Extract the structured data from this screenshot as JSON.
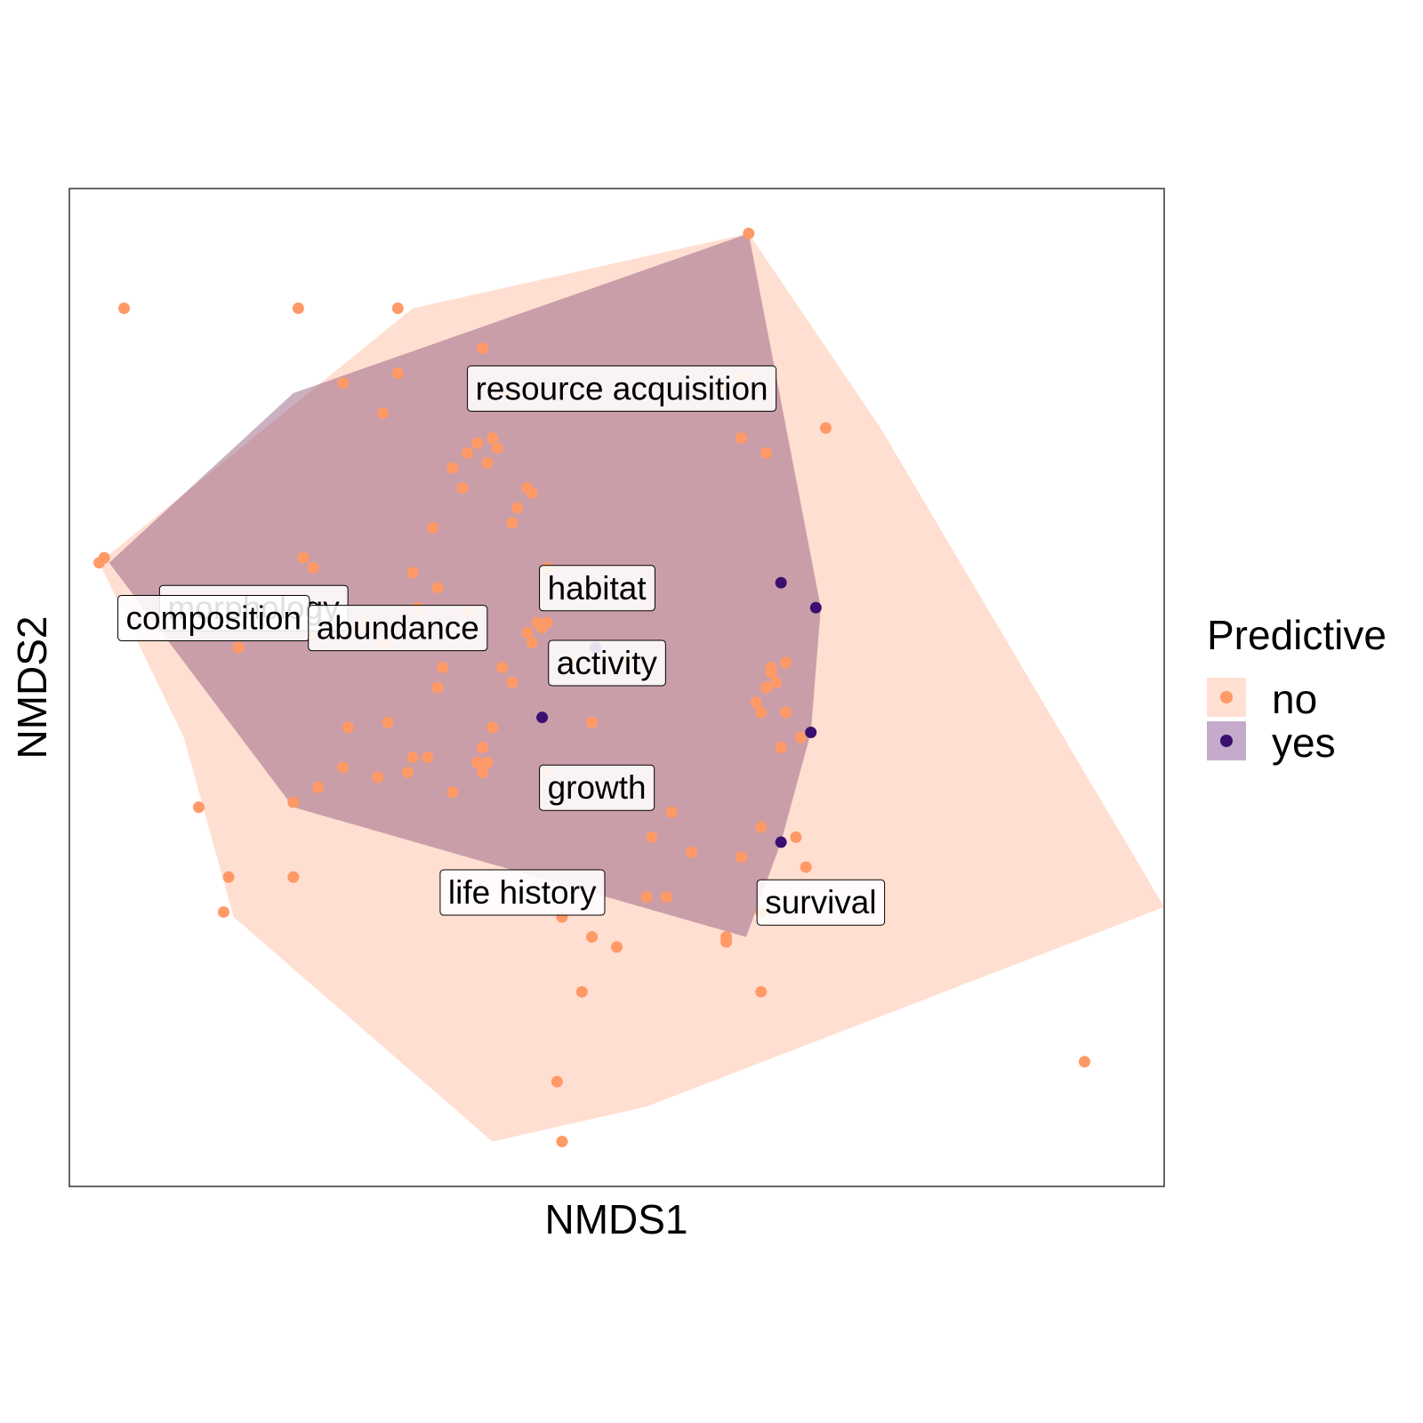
{
  "chart_data": {
    "type": "scatter",
    "xlabel": "NMDS1",
    "ylabel": "NMDS2",
    "xlim": [
      -1.05,
      1.15
    ],
    "ylim": [
      -1.0,
      1.0
    ],
    "grid": false,
    "legend": {
      "title": "Predictive",
      "placement": "right",
      "entries": [
        {
          "label": "no",
          "color": "#FF9966",
          "hull_color": "#FFE0D3"
        },
        {
          "label": "yes",
          "color": "#3B0F6F",
          "hull_color": "#C5A5B5"
        }
      ]
    },
    "series": [
      {
        "name": "no",
        "color": "#FF9966",
        "hull_fill": "#FFDFD1",
        "x": [
          0.315,
          -0.39,
          0.47,
          -0.98,
          -0.99,
          -0.59,
          -0.06,
          -0.73,
          -0.5,
          -0.17,
          0.3,
          0.27,
          -0.22,
          0.3,
          0.35,
          -0.39,
          -0.42,
          -0.25,
          -0.2,
          -0.21,
          -0.23,
          -0.19,
          -0.28,
          -0.26,
          -0.12,
          -0.15,
          -0.16,
          -0.13,
          -0.32,
          -0.09,
          -0.09,
          -0.36,
          -0.31,
          -0.56,
          -0.46,
          -0.48,
          -0.42,
          -0.71,
          -0.58,
          -0.55,
          -0.56,
          -0.35,
          -0.25,
          -0.1,
          -0.11,
          -0.13,
          -0.12,
          -0.16,
          -0.18,
          -0.3,
          0.39,
          0.36,
          0.37,
          0.36,
          0.35,
          -0.31,
          0.0,
          0.07,
          -0.04,
          0.33,
          0.34,
          0.39,
          0.42,
          0.38,
          -0.2,
          -0.22,
          -0.21,
          -0.41,
          -0.49,
          -0.36,
          -0.33,
          -0.43,
          -0.37,
          -0.23,
          -0.22,
          -0.5,
          -0.55,
          -0.09,
          -0.28,
          -0.6,
          -0.79,
          -0.6,
          -0.74,
          0.12,
          0.34,
          0.41,
          0.43,
          0.3,
          0.16,
          0.2,
          0.11,
          0.34,
          0.27,
          0.15,
          0.0,
          0.27,
          0.34,
          0.99,
          -0.02,
          -0.07,
          0.05,
          -0.06,
          -0.94
        ],
        "y": [
          0.91,
          0.76,
          0.52,
          0.26,
          0.25,
          0.76,
          -0.91,
          -0.38,
          0.61,
          0.59,
          0.62,
          0.6,
          0.68,
          0.5,
          0.47,
          0.63,
          0.55,
          0.47,
          0.5,
          0.45,
          0.49,
          0.48,
          0.44,
          0.4,
          0.39,
          0.36,
          0.33,
          0.4,
          0.32,
          0.24,
          0.13,
          0.23,
          0.2,
          0.24,
          0.13,
          0.12,
          0.09,
          0.08,
          0.26,
          0.13,
          0.11,
          0.16,
          0.15,
          0.12,
          0.13,
          0.11,
          0.09,
          0.01,
          0.04,
          0.04,
          0.05,
          0.04,
          0.01,
          0.03,
          0.0,
          0.0,
          -0.07,
          0.05,
          0.05,
          -0.03,
          -0.05,
          -0.05,
          -0.1,
          -0.12,
          -0.08,
          -0.12,
          -0.15,
          -0.07,
          -0.08,
          -0.14,
          -0.14,
          -0.18,
          -0.17,
          -0.15,
          -0.17,
          -0.16,
          -0.2,
          -0.17,
          -0.21,
          -0.23,
          -0.24,
          -0.38,
          -0.45,
          -0.3,
          -0.28,
          -0.3,
          -0.36,
          -0.34,
          -0.25,
          -0.33,
          -0.42,
          -0.45,
          -0.5,
          -0.42,
          -0.5,
          -0.51,
          -0.61,
          -0.75,
          -0.61,
          -0.79,
          -0.52,
          -0.46,
          0.76
        ],
        "hull_order_description": "convex hull of group 'no'"
      },
      {
        "name": "yes",
        "color": "#3B0F6F",
        "hull_fill": "#C5A5B5",
        "x": [
          0.38,
          0.45,
          0.007,
          -0.1,
          0.44,
          0.38
        ],
        "y": [
          0.21,
          0.16,
          0.08,
          -0.06,
          -0.09,
          -0.31
        ]
      }
    ],
    "yes_hull_extra_points": [
      {
        "x": 0.315,
        "y": 0.91
      },
      {
        "x": 0.46,
        "y": 0.16
      },
      {
        "x": 0.44,
        "y": -0.09
      },
      {
        "x": 0.38,
        "y": -0.31
      },
      {
        "x": 0.31,
        "y": -0.5
      },
      {
        "x": -0.6,
        "y": -0.24
      },
      {
        "x": -0.97,
        "y": 0.25
      },
      {
        "x": -0.6,
        "y": 0.59
      }
    ],
    "no_hull_points": [
      {
        "x": 0.315,
        "y": 0.91
      },
      {
        "x": 0.58,
        "y": 0.52
      },
      {
        "x": 1.15,
        "y": -0.44
      },
      {
        "x": 0.11,
        "y": -0.84
      },
      {
        "x": -0.2,
        "y": -0.91
      },
      {
        "x": -0.72,
        "y": -0.46
      },
      {
        "x": -0.82,
        "y": -0.1
      },
      {
        "x": -0.99,
        "y": 0.25
      },
      {
        "x": -0.36,
        "y": 0.76
      }
    ],
    "annotations": [
      {
        "text": "resource acquisition",
        "x": 0.06,
        "y": 0.6
      },
      {
        "text": "habitat",
        "x": 0.01,
        "y": 0.2
      },
      {
        "text": "morphology",
        "x": -0.68,
        "y": 0.16
      },
      {
        "text": "composition",
        "x": -0.76,
        "y": 0.14
      },
      {
        "text": "abundance",
        "x": -0.39,
        "y": 0.12
      },
      {
        "text": "activity",
        "x": 0.03,
        "y": 0.05
      },
      {
        "text": "growth",
        "x": 0.01,
        "y": -0.2
      },
      {
        "text": "life history",
        "x": -0.14,
        "y": -0.41
      },
      {
        "text": "survival",
        "x": 0.46,
        "y": -0.43
      }
    ]
  }
}
